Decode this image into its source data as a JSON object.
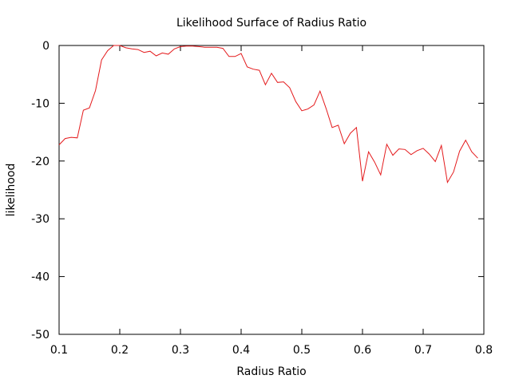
{
  "chart_data": {
    "type": "line",
    "title": "Likelihood Surface of Radius Ratio",
    "xlabel": "Radius Ratio",
    "ylabel": "likelihood",
    "xlim": [
      0.1,
      0.8
    ],
    "ylim": [
      -50,
      0
    ],
    "xticks": [
      0.1,
      0.2,
      0.3,
      0.4,
      0.5,
      0.6,
      0.7,
      0.8
    ],
    "xtick_labels": [
      "0.1",
      "0.2",
      "0.3",
      "0.4",
      "0.5",
      "0.6",
      "0.7",
      "0.8"
    ],
    "yticks": [
      0,
      -10,
      -20,
      -30,
      -40,
      -50
    ],
    "ytick_labels": [
      "0",
      "-10",
      "-20",
      "-30",
      "-40",
      "-50"
    ],
    "grid": false,
    "line_color": "#e41a1c",
    "series": [
      {
        "x": [
          0.1,
          0.11,
          0.12,
          0.13,
          0.14,
          0.15,
          0.16,
          0.17,
          0.18,
          0.19,
          0.2,
          0.21,
          0.22,
          0.23,
          0.24,
          0.25,
          0.26,
          0.27,
          0.28,
          0.29,
          0.3,
          0.31,
          0.32,
          0.33,
          0.34,
          0.35,
          0.36,
          0.37,
          0.38,
          0.39,
          0.4,
          0.41,
          0.42,
          0.43,
          0.44,
          0.45,
          0.46,
          0.47,
          0.48,
          0.49,
          0.5,
          0.51,
          0.52,
          0.53,
          0.54,
          0.55,
          0.56,
          0.57,
          0.58,
          0.59,
          0.6,
          0.61,
          0.62,
          0.63,
          0.64,
          0.65,
          0.66,
          0.67,
          0.68,
          0.69,
          0.7,
          0.71,
          0.72,
          0.73,
          0.74,
          0.75,
          0.76,
          0.77,
          0.78,
          0.79
        ],
        "y": [
          -17.2,
          -16.1,
          -15.9,
          -16.0,
          -11.2,
          -10.8,
          -7.8,
          -2.5,
          -0.9,
          0.0,
          0.0,
          -0.4,
          -0.6,
          -0.7,
          -1.2,
          -1.0,
          -1.8,
          -1.3,
          -1.5,
          -0.6,
          -0.2,
          -0.1,
          -0.1,
          -0.2,
          -0.3,
          -0.3,
          -0.3,
          -0.5,
          -1.9,
          -1.9,
          -1.4,
          -3.7,
          -4.1,
          -4.3,
          -6.8,
          -4.8,
          -6.4,
          -6.3,
          -7.3,
          -9.7,
          -11.3,
          -11.0,
          -10.3,
          -7.9,
          -10.9,
          -14.2,
          -13.8,
          -17.0,
          -15.2,
          -14.2,
          -23.5,
          -18.4,
          -20.2,
          -22.4,
          -17.1,
          -19.0,
          -17.9,
          -18.0,
          -18.9,
          -18.2,
          -17.8,
          -18.8,
          -20.1,
          -17.3,
          -23.7,
          -21.9,
          -18.3,
          -16.4,
          -18.4,
          -19.5
        ]
      }
    ]
  }
}
